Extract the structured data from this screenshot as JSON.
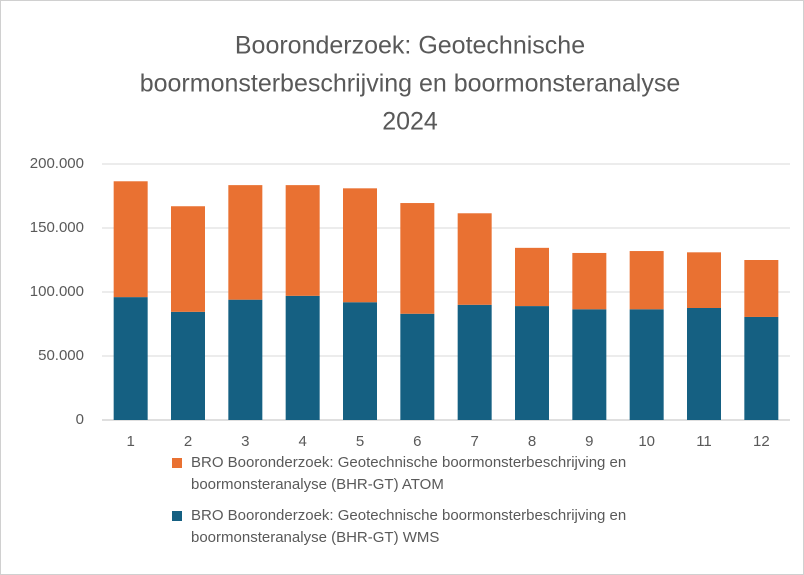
{
  "chart_data": {
    "type": "stacked_bar",
    "title": [
      "Booronderzoek: Geotechnische",
      "boormonsterbeschrijving en boormonsteranalyse",
      "2024"
    ],
    "categories": [
      "1",
      "2",
      "3",
      "4",
      "5",
      "6",
      "7",
      "8",
      "9",
      "10",
      "11",
      "12"
    ],
    "series": [
      {
        "name": "BRO Booronderzoek: Geotechnische boormonsterbeschrijving en boormonsteranalyse (BHR-GT) WMS",
        "color": "#156082",
        "values": [
          96000,
          84500,
          94000,
          97000,
          92000,
          83000,
          90000,
          89000,
          86500,
          86500,
          87500,
          80500
        ]
      },
      {
        "name": "BRO Booronderzoek: Geotechnische boormonsterbeschrijving en boormonsteranalyse (BHR-GT) ATOM",
        "color": "#e97132",
        "values": [
          90500,
          82500,
          89500,
          86500,
          89000,
          86500,
          71500,
          45500,
          44000,
          45500,
          43500,
          44500
        ]
      }
    ],
    "ylim": [
      0,
      200000
    ],
    "yticks": [
      0,
      {
        "value": 50000,
        "label": "50.000"
      },
      {
        "value": 100000,
        "label": "100.000"
      },
      {
        "value": 150000,
        "label": "150.000"
      },
      {
        "value": 200000,
        "label": "200.000"
      }
    ],
    "grid": true
  }
}
